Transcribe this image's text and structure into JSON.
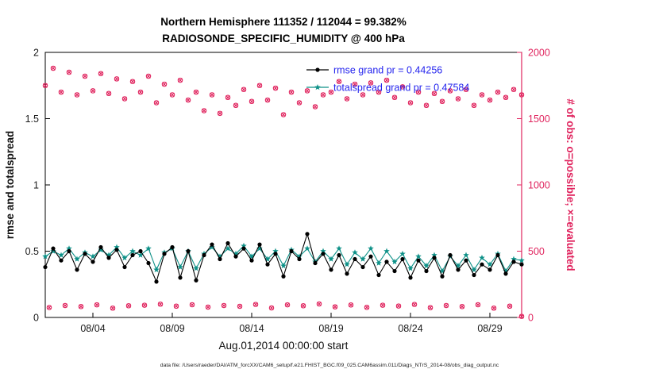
{
  "header": {
    "line1": "Northern Hemisphere 111352 / 112044 = 99.382%",
    "line2": "RADIOSONDE_SPECIFIC_HUMIDITY @ 400 hPa"
  },
  "axes": {
    "left_label": "rmse and totalspread",
    "right_label": "# of obs: o=possible; ×=evaluated",
    "x_label": "Aug.01,2014 00:00:00 start"
  },
  "footer": {
    "text": "data file: /Users/raeder/DAI/ATM_forcXX/CAM6_setup/f.e21.FHIST_BGC.f09_025.CAM6assim.011/Diags_NTrS_2014-08/obs_diag_output.nc"
  },
  "colors": {
    "rmse": "#000000",
    "totalspread": "#0e9188",
    "obs": "#e0245e",
    "legend_text": "#2424ee",
    "axis_box": "#000000"
  },
  "legend": {
    "entries": [
      {
        "label": "rmse grand pr = 0.44256",
        "series": "rmse"
      },
      {
        "label": "totalspread grand pr = 0.47584",
        "series": "totalspread"
      }
    ]
  },
  "chart_data": {
    "type": "line",
    "title": "Northern Hemisphere 111352 / 112044 = 99.382% | RADIOSONDE_SPECIFIC_HUMIDITY @ 400 hPa",
    "xlabel": "Aug.01,2014 00:00:00 start",
    "ylabel_left": "rmse and totalspread",
    "ylabel_right": "# of obs: o=possible; ×=evaluated",
    "xlim": [
      1,
      31
    ],
    "x_ticks": [
      {
        "v": 4,
        "label": "08/04"
      },
      {
        "v": 9,
        "label": "08/09"
      },
      {
        "v": 14,
        "label": "08/14"
      },
      {
        "v": 19,
        "label": "08/19"
      },
      {
        "v": 24,
        "label": "08/24"
      },
      {
        "v": 29,
        "label": "08/29"
      }
    ],
    "left_ylim": [
      0,
      2
    ],
    "left_yticks": [
      {
        "v": 0,
        "label": "0"
      },
      {
        "v": 0.5,
        "label": "0.5"
      },
      {
        "v": 1,
        "label": "1"
      },
      {
        "v": 1.5,
        "label": "1.5"
      },
      {
        "v": 2,
        "label": "2"
      }
    ],
    "right_ylim": [
      0,
      2000
    ],
    "right_yticks": [
      {
        "v": 0,
        "label": "0"
      },
      {
        "v": 500,
        "label": "500"
      },
      {
        "v": 1000,
        "label": "1000"
      },
      {
        "v": 1500,
        "label": "1500"
      },
      {
        "v": 2000,
        "label": "2000"
      }
    ],
    "series": [
      {
        "name": "obs_synoptic",
        "axis": "right",
        "color": "#e0245e",
        "marker": "ox",
        "line": false,
        "x": {
          "start": 1,
          "step": 0.5,
          "count": 61
        },
        "y": [
          1750,
          1880,
          1700,
          1850,
          1680,
          1820,
          1710,
          1840,
          1690,
          1800,
          1650,
          1780,
          1700,
          1820,
          1620,
          1760,
          1680,
          1790,
          1640,
          1700,
          1560,
          1680,
          1540,
          1660,
          1600,
          1720,
          1630,
          1750,
          1640,
          1730,
          1530,
          1700,
          1620,
          1710,
          1590,
          1680,
          1700,
          1780,
          1650,
          1760,
          1680,
          1770,
          1700,
          1790,
          1660,
          1740,
          1620,
          1700,
          1600,
          1690,
          1630,
          1710,
          1650,
          1720,
          1600,
          1680,
          1640,
          1700,
          1660,
          1720,
          1680
        ]
      },
      {
        "name": "obs_offhours",
        "axis": "right",
        "color": "#e0245e",
        "marker": "ox",
        "line": false,
        "x": [
          1.25,
          2.25,
          3.25,
          4.25,
          5.25,
          6.25,
          7.25,
          8.25,
          9.25,
          10.25,
          11.25,
          12.25,
          13.25,
          14.25,
          15.25,
          16.25,
          17.25,
          18.25,
          19.25,
          20.25,
          21.25,
          22.25,
          23.25,
          24.25,
          25.25,
          26.25,
          27.25,
          28.25,
          29.25,
          30.25,
          31
        ],
        "y": [
          75,
          90,
          82,
          95,
          70,
          88,
          92,
          100,
          85,
          96,
          78,
          90,
          84,
          98,
          72,
          95,
          88,
          102,
          80,
          94,
          76,
          92,
          86,
          98,
          74,
          90,
          82,
          96,
          70,
          85,
          8
        ]
      },
      {
        "name": "totalspread",
        "axis": "left",
        "color": "#0e9188",
        "marker": "star",
        "line": true,
        "x": {
          "start": 1,
          "step": 0.5,
          "count": 61
        },
        "y": [
          0.46,
          0.5,
          0.47,
          0.52,
          0.44,
          0.49,
          0.46,
          0.51,
          0.47,
          0.53,
          0.45,
          0.5,
          0.47,
          0.52,
          0.36,
          0.49,
          0.52,
          0.38,
          0.5,
          0.37,
          0.48,
          0.53,
          0.46,
          0.52,
          0.48,
          0.54,
          0.46,
          0.52,
          0.44,
          0.5,
          0.39,
          0.51,
          0.46,
          0.52,
          0.42,
          0.5,
          0.44,
          0.52,
          0.4,
          0.49,
          0.44,
          0.52,
          0.41,
          0.5,
          0.42,
          0.48,
          0.37,
          0.46,
          0.39,
          0.47,
          0.35,
          0.46,
          0.39,
          0.47,
          0.36,
          0.45,
          0.4,
          0.48,
          0.35,
          0.44,
          0.43
        ]
      },
      {
        "name": "rmse",
        "axis": "left",
        "color": "#000000",
        "marker": "dot",
        "line": true,
        "x": {
          "start": 1,
          "step": 0.5,
          "count": 61
        },
        "y": [
          0.38,
          0.52,
          0.43,
          0.5,
          0.36,
          0.48,
          0.42,
          0.53,
          0.45,
          0.51,
          0.38,
          0.47,
          0.5,
          0.41,
          0.27,
          0.48,
          0.53,
          0.3,
          0.5,
          0.28,
          0.47,
          0.55,
          0.44,
          0.56,
          0.46,
          0.52,
          0.43,
          0.55,
          0.4,
          0.48,
          0.31,
          0.5,
          0.44,
          0.63,
          0.41,
          0.48,
          0.36,
          0.47,
          0.33,
          0.44,
          0.38,
          0.46,
          0.32,
          0.42,
          0.35,
          0.44,
          0.3,
          0.43,
          0.35,
          0.45,
          0.31,
          0.47,
          0.36,
          0.43,
          0.32,
          0.4,
          0.36,
          0.47,
          0.33,
          0.42,
          0.4
        ]
      }
    ]
  }
}
